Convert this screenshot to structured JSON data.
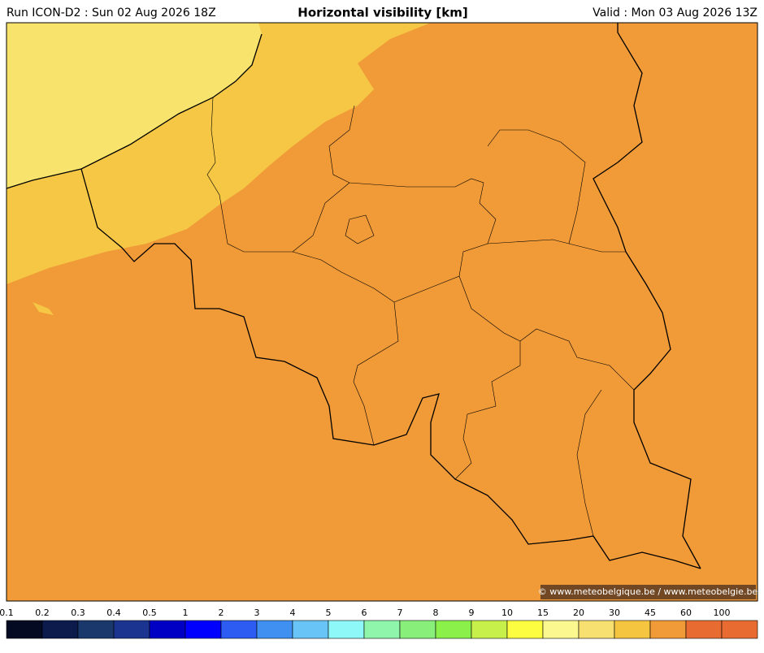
{
  "header": {
    "run": "Run ICON-D2 : Sun 02 Aug 2026 18Z",
    "title": "Horizontal visibility [km]",
    "valid": "Valid : Mon 03 Aug 2026 13Z"
  },
  "map": {
    "credit": "© www.meteobelgique.be / www.meteobelgie.be"
  },
  "colorbar": {
    "ticks": [
      0.1,
      0.2,
      0.3,
      0.4,
      0.5,
      1,
      2,
      3,
      4,
      5,
      6,
      7,
      8,
      9,
      10,
      15,
      20,
      30,
      45,
      60,
      100
    ],
    "colors": [
      "#030a22",
      "#0c1a4c",
      "#1a386c",
      "#1a3490",
      "#0000c4",
      "#0000ff",
      "#2c5cf2",
      "#3f90f0",
      "#68c4f6",
      "#8ef8f8",
      "#8ef5aa",
      "#88f07a",
      "#8cf04a",
      "#c8f04a",
      "#fcfc40",
      "#fcf890",
      "#f8e070",
      "#f5c540",
      "#f09a38",
      "#e86c32",
      "#e86c32"
    ]
  }
}
